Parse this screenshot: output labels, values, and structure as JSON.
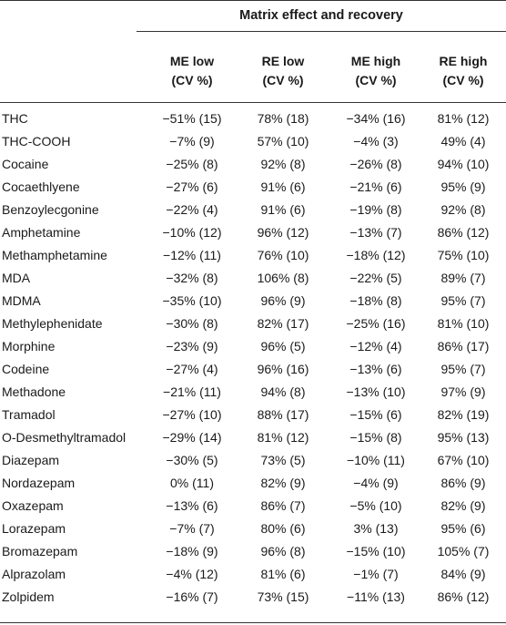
{
  "table": {
    "caption": "Matrix effect and recovery",
    "headers": [
      {
        "line1": "ME low",
        "line2": "(CV %)"
      },
      {
        "line1": "RE low",
        "line2": "(CV %)"
      },
      {
        "line1": "ME high",
        "line2": "(CV %)"
      },
      {
        "line1": "RE high",
        "line2": "(CV %)"
      }
    ],
    "rows": [
      [
        "THC",
        "−51% (15)",
        "78% (18)",
        "−34% (16)",
        "81% (12)"
      ],
      [
        "THC-COOH",
        "−7% (9)",
        "57% (10)",
        "−4% (3)",
        "49% (4)"
      ],
      [
        "Cocaine",
        "−25% (8)",
        "92% (8)",
        "−26% (8)",
        "94% (10)"
      ],
      [
        "Cocaethlyene",
        "−27% (6)",
        "91% (6)",
        "−21% (6)",
        "95% (9)"
      ],
      [
        "Benzoylecgonine",
        "−22% (4)",
        "91% (6)",
        "−19% (8)",
        "92% (8)"
      ],
      [
        "Amphetamine",
        "−10% (12)",
        "96% (12)",
        "−13% (7)",
        "86% (12)"
      ],
      [
        "Methamphetamine",
        "−12% (11)",
        "76% (10)",
        "−18% (12)",
        "75% (10)"
      ],
      [
        "MDA",
        "−32% (8)",
        "106% (8)",
        "−22% (5)",
        "89% (7)"
      ],
      [
        "MDMA",
        "−35% (10)",
        "96% (9)",
        "−18% (8)",
        "95% (7)"
      ],
      [
        "Methylephenidate",
        "−30% (8)",
        "82% (17)",
        "−25% (16)",
        "81% (10)"
      ],
      [
        "Morphine",
        "−23% (9)",
        "96% (5)",
        "−12% (4)",
        "86% (17)"
      ],
      [
        "Codeine",
        "−27% (4)",
        "96% (16)",
        "−13% (6)",
        "95% (7)"
      ],
      [
        "Methadone",
        "−21% (11)",
        "94% (8)",
        "−13% (10)",
        "97% (9)"
      ],
      [
        "Tramadol",
        "−27% (10)",
        "88% (17)",
        "−15% (6)",
        "82% (19)"
      ],
      [
        "O-Desmethyltramadol",
        "−29% (14)",
        "81% (12)",
        "−15% (8)",
        "95% (13)"
      ],
      [
        "Diazepam",
        "−30% (5)",
        "73% (5)",
        "−10% (11)",
        "67% (10)"
      ],
      [
        "Nordazepam",
        "0% (11)",
        "82% (9)",
        "−4% (9)",
        "86% (9)"
      ],
      [
        "Oxazepam",
        "−13% (6)",
        "86% (7)",
        "−5% (10)",
        "82% (9)"
      ],
      [
        "Lorazepam",
        "−7% (7)",
        "80% (6)",
        "3% (13)",
        "95% (6)"
      ],
      [
        "Bromazepam",
        "−18% (9)",
        "96% (8)",
        "−15% (10)",
        "105% (7)"
      ],
      [
        "Alprazolam",
        "−4% (12)",
        "81% (6)",
        "−1% (7)",
        "84% (9)"
      ],
      [
        "Zolpidem",
        "−16% (7)",
        "73% (15)",
        "−11% (13)",
        "86% (12)"
      ]
    ]
  }
}
